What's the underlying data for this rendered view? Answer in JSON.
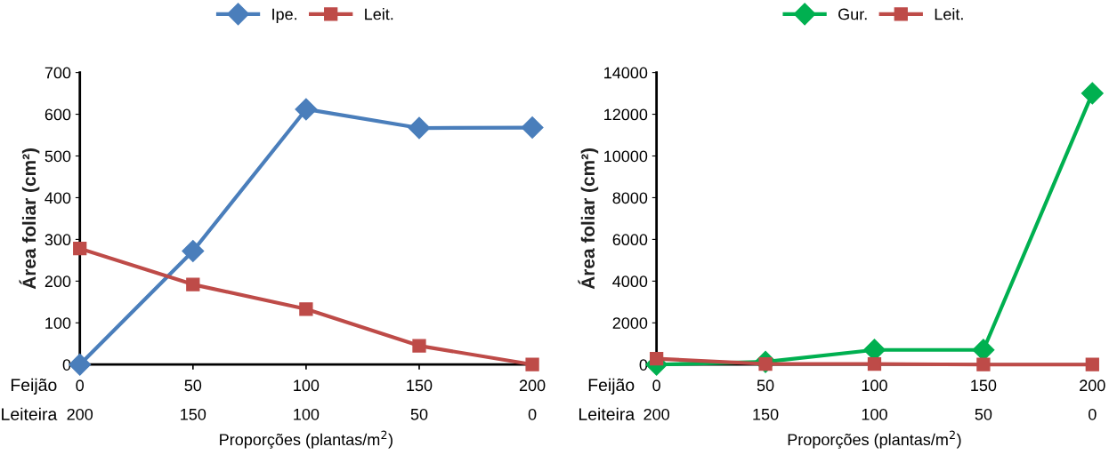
{
  "chart_data": [
    {
      "type": "line",
      "categories": [
        "0\n200",
        "50\n150",
        "100\n100",
        "150\n50",
        "200\n0"
      ],
      "xlabel": "Proporções (plantas/m$^{2}$)",
      "ylabel": "Área foliar (cm²)",
      "ylim": [
        0,
        700
      ],
      "yticks": [
        0,
        100,
        200,
        300,
        400,
        500,
        600,
        700
      ],
      "grid": false,
      "legend": "top",
      "annotations": [
        "Feijão",
        "Leiteira"
      ],
      "series": [
        {
          "name": "Ipe.",
          "color": "#4a7ebb",
          "marker": "diamond",
          "values": [
            0,
            272,
            612,
            567,
            568
          ]
        },
        {
          "name": "Leit.",
          "color": "#be4b48",
          "marker": "square",
          "values": [
            278,
            192,
            133,
            45,
            0
          ]
        }
      ]
    },
    {
      "type": "line",
      "categories": [
        "0\n200",
        "50\n150",
        "100\n100",
        "150\n50",
        "200\n0"
      ],
      "xlabel": "Proporções (plantas/m$^{2}$)",
      "ylabel": "Área foliar (cm²)",
      "ylim": [
        0,
        14000
      ],
      "yticks": [
        0,
        2000,
        4000,
        6000,
        8000,
        10000,
        12000,
        14000
      ],
      "grid": false,
      "legend": "top",
      "annotations": [
        "Feijão",
        "Leiteira"
      ],
      "series": [
        {
          "name": "Gur.",
          "color": "#00b050",
          "marker": "diamond",
          "values": [
            0,
            130,
            700,
            700,
            13000
          ]
        },
        {
          "name": "Leit.",
          "color": "#be4b48",
          "marker": "square",
          "values": [
            280,
            30,
            30,
            0,
            0
          ]
        }
      ]
    }
  ]
}
